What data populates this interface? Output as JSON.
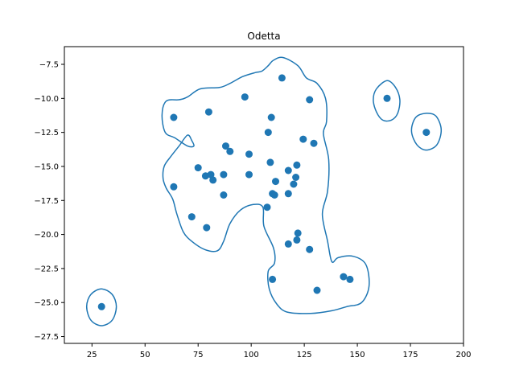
{
  "chart_data": {
    "type": "scatter",
    "title": "Odetta",
    "xlabel": "",
    "ylabel": "",
    "xlim": [
      12,
      200
    ],
    "ylim": [
      -28,
      -6.2
    ],
    "xticks": [
      25,
      50,
      75,
      100,
      125,
      150,
      175,
      200
    ],
    "yticks": [
      -27.5,
      -25.0,
      -22.5,
      -20.0,
      -17.5,
      -15.0,
      -12.5,
      -10.0,
      -7.5
    ],
    "grid": false,
    "legend": "none",
    "color": "#1f77b4",
    "points": [
      [
        29.5,
        -25.3
      ],
      [
        63.5,
        -11.4
      ],
      [
        63.5,
        -16.5
      ],
      [
        72.0,
        -18.7
      ],
      [
        75.0,
        -15.1
      ],
      [
        78.5,
        -15.7
      ],
      [
        79.0,
        -19.5
      ],
      [
        80.0,
        -11.0
      ],
      [
        81.0,
        -15.6
      ],
      [
        82.0,
        -16.0
      ],
      [
        87.0,
        -15.6
      ],
      [
        87.0,
        -17.1
      ],
      [
        88.0,
        -13.5
      ],
      [
        90.0,
        -13.9
      ],
      [
        97.0,
        -9.9
      ],
      [
        99.0,
        -14.1
      ],
      [
        99.0,
        -15.6
      ],
      [
        107.5,
        -18.0
      ],
      [
        108.0,
        -12.5
      ],
      [
        109.0,
        -14.7
      ],
      [
        109.5,
        -11.4
      ],
      [
        110.0,
        -17.0
      ],
      [
        110.0,
        -23.3
      ],
      [
        111.0,
        -17.1
      ],
      [
        111.5,
        -16.1
      ],
      [
        114.5,
        -8.5
      ],
      [
        117.5,
        -15.3
      ],
      [
        117.5,
        -20.7
      ],
      [
        117.5,
        -17.0
      ],
      [
        120.0,
        -16.3
      ],
      [
        121.0,
        -15.8
      ],
      [
        121.5,
        -20.4
      ],
      [
        121.5,
        -14.9
      ],
      [
        122.0,
        -19.9
      ],
      [
        124.5,
        -13.0
      ],
      [
        127.5,
        -10.1
      ],
      [
        127.5,
        -21.1
      ],
      [
        129.5,
        -13.3
      ],
      [
        131.0,
        -24.1
      ],
      [
        143.5,
        -23.1
      ],
      [
        146.5,
        -23.3
      ],
      [
        164.0,
        -10.0
      ],
      [
        182.5,
        -12.5
      ]
    ],
    "contours": [
      [
        [
          115,
          -7.0
        ],
        [
          122,
          -7.6
        ],
        [
          126,
          -8.5
        ],
        [
          131,
          -8.9
        ],
        [
          135,
          -10.0
        ],
        [
          135.5,
          -11.7
        ],
        [
          134,
          -12.6
        ],
        [
          136.5,
          -14.5
        ],
        [
          136,
          -16.8
        ],
        [
          133.5,
          -18.5
        ],
        [
          136,
          -20.5
        ],
        [
          138,
          -22.0
        ],
        [
          141,
          -21.7
        ],
        [
          148,
          -21.6
        ],
        [
          154,
          -22.2
        ],
        [
          155.5,
          -23.8
        ],
        [
          152,
          -25.0
        ],
        [
          145,
          -25.3
        ],
        [
          138,
          -25.6
        ],
        [
          128,
          -25.8
        ],
        [
          117,
          -25.7
        ],
        [
          112,
          -25.1
        ],
        [
          108.5,
          -24.0
        ],
        [
          108,
          -22.7
        ],
        [
          111,
          -22.1
        ],
        [
          110.5,
          -21.0
        ],
        [
          106,
          -19.4
        ],
        [
          105.5,
          -18.0
        ],
        [
          101,
          -17.8
        ],
        [
          95,
          -18.2
        ],
        [
          90,
          -19.2
        ],
        [
          87,
          -20.5
        ],
        [
          84,
          -21.2
        ],
        [
          78,
          -21.1
        ],
        [
          72,
          -20.5
        ],
        [
          68,
          -19.8
        ],
        [
          65,
          -18.5
        ],
        [
          63,
          -17.4
        ],
        [
          60,
          -16.6
        ],
        [
          58.5,
          -15.9
        ],
        [
          59,
          -15.0
        ],
        [
          62,
          -14.3
        ],
        [
          66,
          -13.5
        ],
        [
          70,
          -12.7
        ],
        [
          72,
          -13.1
        ],
        [
          73,
          -13.5
        ],
        [
          70,
          -13.5
        ],
        [
          64,
          -12.9
        ],
        [
          59.5,
          -12.5
        ],
        [
          58,
          -11.2
        ],
        [
          60,
          -10.2
        ],
        [
          66,
          -10.1
        ],
        [
          70,
          -9.9
        ],
        [
          76,
          -9.3
        ],
        [
          85,
          -9.2
        ],
        [
          90,
          -8.9
        ],
        [
          96,
          -8.4
        ],
        [
          102,
          -8.1
        ],
        [
          105,
          -8.0
        ],
        [
          108,
          -7.6
        ],
        [
          110.5,
          -7.2
        ],
        [
          115,
          -7.0
        ]
      ],
      [
        [
          164,
          -8.7
        ],
        [
          168,
          -9.2
        ],
        [
          170,
          -10.1
        ],
        [
          169,
          -11.1
        ],
        [
          166,
          -11.6
        ],
        [
          162,
          -11.6
        ],
        [
          159,
          -11.0
        ],
        [
          157.5,
          -10.1
        ],
        [
          159,
          -9.3
        ],
        [
          164,
          -8.7
        ]
      ],
      [
        [
          182.5,
          -11.1
        ],
        [
          187,
          -11.3
        ],
        [
          189.5,
          -12.3
        ],
        [
          187.5,
          -13.4
        ],
        [
          182.5,
          -13.8
        ],
        [
          178,
          -13.4
        ],
        [
          175.5,
          -12.4
        ],
        [
          177.5,
          -11.4
        ],
        [
          182.5,
          -11.1
        ]
      ],
      [
        [
          29.5,
          -24.0
        ],
        [
          34.5,
          -24.4
        ],
        [
          36.5,
          -25.3
        ],
        [
          34.5,
          -26.3
        ],
        [
          29.5,
          -26.7
        ],
        [
          24.5,
          -26.3
        ],
        [
          22.5,
          -25.3
        ],
        [
          24.5,
          -24.4
        ],
        [
          29.5,
          -24.0
        ]
      ]
    ]
  }
}
